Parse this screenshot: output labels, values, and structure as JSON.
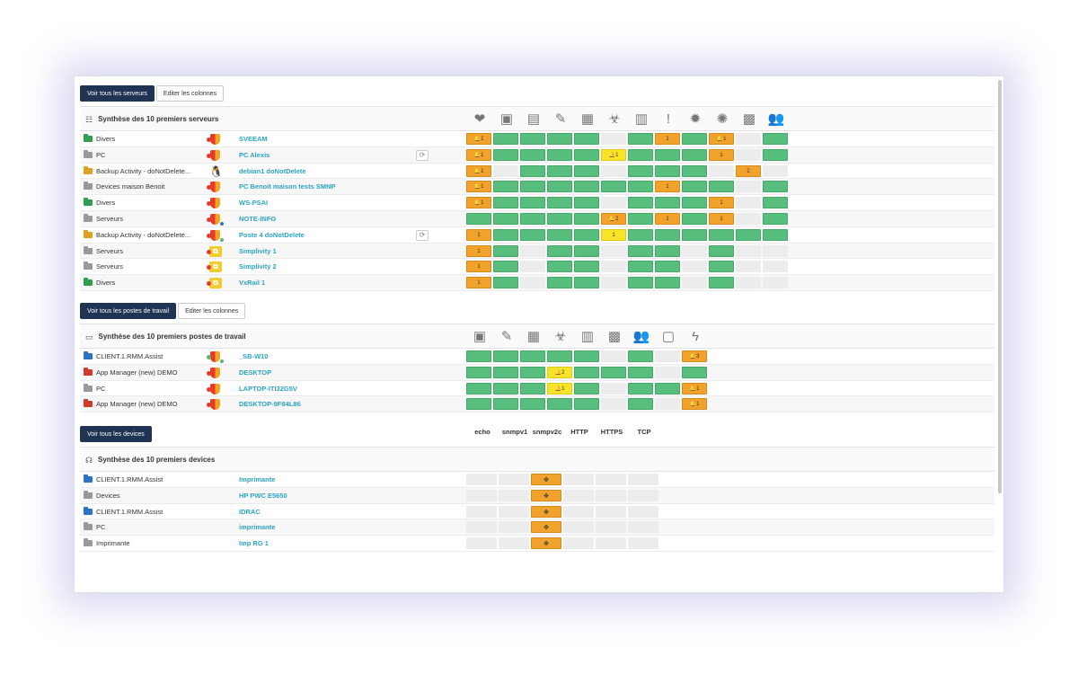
{
  "colors": {
    "ok": "#58be7d",
    "warning": "#f0a22b",
    "minor": "#f7e327",
    "empty": "#ececec",
    "primary": "#1f3354",
    "link": "#2aa3c6"
  },
  "servers": {
    "btn_all": "Voir tous les serveurs",
    "btn_edit": "Editer les colonnes",
    "title": "Synthèse des 10 premiers serveurs",
    "columns": [
      "heartbeat-icon",
      "disk-icon",
      "memory-icon",
      "pencil-icon",
      "cpu-icon",
      "biohazard-icon",
      "chart-icon",
      "alert-icon",
      "gear-icon",
      "settings-icon",
      "server-lock-icon",
      "users-icon"
    ],
    "rows": [
      {
        "group": "Divers",
        "folder": "#2f9e4e",
        "os": "windows",
        "name": "SVEEAM",
        "refresh": false,
        "cells": [
          [
            "o",
            "🔔1"
          ],
          [
            "g",
            ""
          ],
          [
            "g",
            ""
          ],
          [
            "g",
            ""
          ],
          [
            "g",
            ""
          ],
          [
            "e",
            ""
          ],
          [
            "g",
            ""
          ],
          [
            "o",
            "1"
          ],
          [
            "g",
            ""
          ],
          [
            "o",
            "🔔1"
          ],
          [
            "e",
            ""
          ],
          [
            "g",
            ""
          ]
        ]
      },
      {
        "group": "PC",
        "folder": "#999999",
        "os": "windows",
        "name": "PC Alexis",
        "refresh": true,
        "cells": [
          [
            "o",
            "🔔1"
          ],
          [
            "g",
            ""
          ],
          [
            "g",
            ""
          ],
          [
            "g",
            ""
          ],
          [
            "g",
            ""
          ],
          [
            "y",
            "🔔1"
          ],
          [
            "g",
            ""
          ],
          [
            "g",
            ""
          ],
          [
            "g",
            ""
          ],
          [
            "o",
            "1"
          ],
          [
            "e",
            ""
          ],
          [
            "g",
            ""
          ]
        ]
      },
      {
        "group": "Backup Activity - doNotDelete...",
        "folder": "#e0a020",
        "os": "linux",
        "name": "debian1 doNotDelete",
        "refresh": false,
        "cells": [
          [
            "o",
            "🔔1"
          ],
          [
            "e",
            ""
          ],
          [
            "g",
            ""
          ],
          [
            "g",
            ""
          ],
          [
            "g",
            ""
          ],
          [
            "e",
            ""
          ],
          [
            "g",
            ""
          ],
          [
            "g",
            ""
          ],
          [
            "g",
            ""
          ],
          [
            "e",
            ""
          ],
          [
            "o",
            "2"
          ],
          [
            "e",
            ""
          ]
        ]
      },
      {
        "group": "Devices maison Benoit",
        "folder": "#999999",
        "os": "windows",
        "name": "PC Benoit maison tests SMNP",
        "refresh": false,
        "cells": [
          [
            "o",
            "🔔1"
          ],
          [
            "g",
            ""
          ],
          [
            "g",
            ""
          ],
          [
            "g",
            ""
          ],
          [
            "g",
            ""
          ],
          [
            "g",
            ""
          ],
          [
            "g",
            ""
          ],
          [
            "o",
            "1"
          ],
          [
            "g",
            ""
          ],
          [
            "g",
            ""
          ],
          [
            "e",
            ""
          ],
          [
            "g",
            ""
          ]
        ]
      },
      {
        "group": "Divers",
        "folder": "#2f9e4e",
        "os": "windows",
        "name": "WS-PSAI",
        "refresh": false,
        "cells": [
          [
            "o",
            "🔔1"
          ],
          [
            "g",
            ""
          ],
          [
            "g",
            ""
          ],
          [
            "g",
            ""
          ],
          [
            "g",
            ""
          ],
          [
            "e",
            ""
          ],
          [
            "g",
            ""
          ],
          [
            "g",
            ""
          ],
          [
            "g",
            ""
          ],
          [
            "o",
            "1"
          ],
          [
            "e",
            ""
          ],
          [
            "g",
            ""
          ]
        ]
      },
      {
        "group": "Serveurs",
        "folder": "#999999",
        "os": "windows-info",
        "name": "NOTE-INFO",
        "refresh": false,
        "cells": [
          [
            "g",
            ""
          ],
          [
            "g",
            ""
          ],
          [
            "g",
            ""
          ],
          [
            "g",
            ""
          ],
          [
            "g",
            ""
          ],
          [
            "o",
            "🔔2"
          ],
          [
            "g",
            ""
          ],
          [
            "o",
            "1"
          ],
          [
            "g",
            ""
          ],
          [
            "o",
            "1"
          ],
          [
            "e",
            ""
          ],
          [
            "g",
            ""
          ]
        ]
      },
      {
        "group": "Backup Activity - doNotDelete...",
        "folder": "#e0a020",
        "os": "windows-ok",
        "name": "Poste 4 doNotDelete",
        "refresh": true,
        "cells": [
          [
            "o",
            "1"
          ],
          [
            "g",
            ""
          ],
          [
            "g",
            ""
          ],
          [
            "g",
            ""
          ],
          [
            "g",
            ""
          ],
          [
            "y",
            "1"
          ],
          [
            "g",
            ""
          ],
          [
            "g",
            ""
          ],
          [
            "g",
            ""
          ],
          [
            "g",
            ""
          ],
          [
            "g",
            ""
          ],
          [
            "g",
            ""
          ]
        ]
      },
      {
        "group": "Serveurs",
        "folder": "#999999",
        "os": "vmware",
        "name": "Simplivity 1",
        "refresh": false,
        "cells": [
          [
            "o",
            "1"
          ],
          [
            "g",
            ""
          ],
          [
            "e",
            ""
          ],
          [
            "g",
            ""
          ],
          [
            "g",
            ""
          ],
          [
            "e",
            ""
          ],
          [
            "g",
            ""
          ],
          [
            "g",
            ""
          ],
          [
            "e",
            ""
          ],
          [
            "g",
            ""
          ],
          [
            "e",
            ""
          ],
          [
            "e",
            ""
          ]
        ]
      },
      {
        "group": "Serveurs",
        "folder": "#999999",
        "os": "vmware",
        "name": "Simplivity 2",
        "refresh": false,
        "cells": [
          [
            "o",
            "1"
          ],
          [
            "g",
            ""
          ],
          [
            "e",
            ""
          ],
          [
            "g",
            ""
          ],
          [
            "g",
            ""
          ],
          [
            "e",
            ""
          ],
          [
            "g",
            ""
          ],
          [
            "g",
            ""
          ],
          [
            "e",
            ""
          ],
          [
            "g",
            ""
          ],
          [
            "e",
            ""
          ],
          [
            "e",
            ""
          ]
        ]
      },
      {
        "group": "Divers",
        "folder": "#2f9e4e",
        "os": "vmware",
        "name": "VxRail 1",
        "refresh": false,
        "cells": [
          [
            "o",
            "1"
          ],
          [
            "g",
            ""
          ],
          [
            "e",
            ""
          ],
          [
            "g",
            ""
          ],
          [
            "g",
            ""
          ],
          [
            "e",
            ""
          ],
          [
            "g",
            ""
          ],
          [
            "g",
            ""
          ],
          [
            "e",
            ""
          ],
          [
            "g",
            ""
          ],
          [
            "e",
            ""
          ],
          [
            "e",
            ""
          ]
        ]
      }
    ]
  },
  "workstations": {
    "btn_all": "Voir tous les postes de travail",
    "btn_edit": "Editer les colonnes",
    "title": "Synthèse des 10 premiers postes de travail",
    "columns": [
      "disk-icon",
      "pencil-icon",
      "cpu-icon",
      "biohazard-icon",
      "chart-icon",
      "server-lock-icon",
      "users-icon",
      "monitor-check-icon",
      "plug-icon"
    ],
    "rows": [
      {
        "group": "CLIENT.1.RMM.Assist",
        "folder": "#2a73c6",
        "os": "windows-ok-dot",
        "name": "_SB-W10",
        "cells": [
          [
            "g",
            ""
          ],
          [
            "g",
            ""
          ],
          [
            "g",
            ""
          ],
          [
            "g",
            ""
          ],
          [
            "g",
            ""
          ],
          [
            "e",
            ""
          ],
          [
            "g",
            ""
          ],
          [
            "e",
            ""
          ],
          [
            "o",
            "🔔3"
          ]
        ]
      },
      {
        "group": "App Manager (new) DEMO",
        "folder": "#d23a2e",
        "os": "windows",
        "name": "DESKTOP",
        "cells": [
          [
            "g",
            ""
          ],
          [
            "g",
            ""
          ],
          [
            "g",
            ""
          ],
          [
            "y",
            "🔔2"
          ],
          [
            "g",
            ""
          ],
          [
            "g",
            ""
          ],
          [
            "g",
            ""
          ],
          [
            "e",
            ""
          ],
          [
            "g",
            ""
          ]
        ]
      },
      {
        "group": "PC",
        "folder": "#999999",
        "os": "windows",
        "name": "LAPTOP-ITI32G5V",
        "cells": [
          [
            "g",
            ""
          ],
          [
            "g",
            ""
          ],
          [
            "g",
            ""
          ],
          [
            "y",
            "🔔1"
          ],
          [
            "g",
            ""
          ],
          [
            "e",
            ""
          ],
          [
            "g",
            ""
          ],
          [
            "g",
            ""
          ],
          [
            "o",
            "🔔1"
          ]
        ]
      },
      {
        "group": "App Manager (new) DEMO",
        "folder": "#d23a2e",
        "os": "windows",
        "name": "DESKTOP-9F84L86",
        "cells": [
          [
            "g",
            ""
          ],
          [
            "g",
            ""
          ],
          [
            "g",
            ""
          ],
          [
            "g",
            ""
          ],
          [
            "g",
            ""
          ],
          [
            "e",
            ""
          ],
          [
            "g",
            ""
          ],
          [
            "e",
            ""
          ],
          [
            "o",
            "🔔1"
          ]
        ]
      }
    ]
  },
  "devices": {
    "btn_all": "Voir tous les devices",
    "title": "Synthèse des 10 premiers devices",
    "protocols": [
      "echo",
      "snmpv1",
      "snmpv2c",
      "HTTP",
      "HTTPS",
      "TCP"
    ],
    "rows": [
      {
        "group": "CLIENT.1.RMM.Assist",
        "folder": "#2a73c6",
        "name": "Imprimante"
      },
      {
        "group": "Devices",
        "folder": "#999999",
        "name": "HP PWC E5650"
      },
      {
        "group": "CLIENT.1.RMM.Assist",
        "folder": "#2a73c6",
        "name": "IDRAC"
      },
      {
        "group": "PC",
        "folder": "#999999",
        "name": "imprimante"
      },
      {
        "group": "Imprimante",
        "folder": "#999999",
        "name": "Imp RG 1"
      }
    ],
    "snmpv2c_symbol": "✥"
  },
  "icons": {
    "heartbeat-icon": "❤",
    "disk-icon": "▣",
    "memory-icon": "▤",
    "pencil-icon": "✎",
    "cpu-icon": "▦",
    "biohazard-icon": "☣",
    "chart-icon": "▥",
    "alert-icon": "!",
    "gear-icon": "✹",
    "settings-icon": "✺",
    "server-lock-icon": "▩",
    "users-icon": "👥",
    "monitor-check-icon": "▢",
    "plug-icon": "ϟ"
  }
}
